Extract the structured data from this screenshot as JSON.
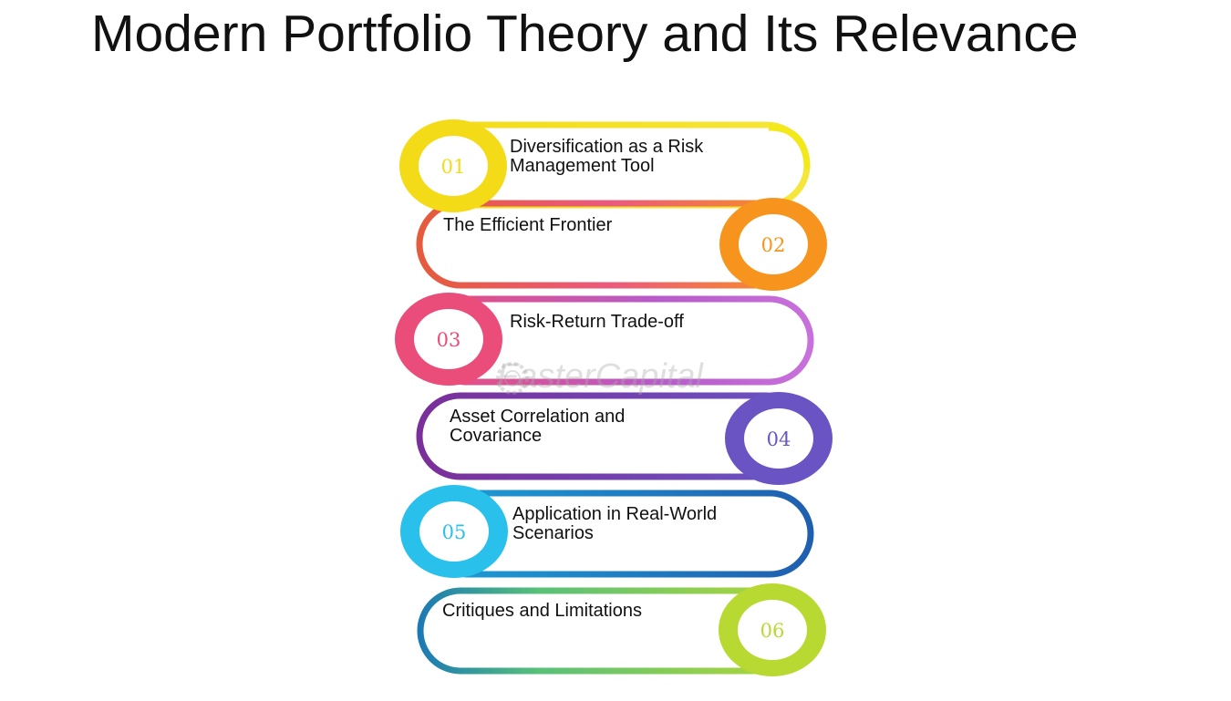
{
  "title": "Modern Portfolio Theory and Its Relevance",
  "watermark": "FasterCapital",
  "steps": [
    {
      "number": "01",
      "label": "Diversification as a Risk\nManagement Tool",
      "color": "#f3db17"
    },
    {
      "number": "02",
      "label": "The Efficient Frontier",
      "color": "#f7941d"
    },
    {
      "number": "03",
      "label": "Risk-Return Trade-off",
      "color": "#ea4d7a"
    },
    {
      "number": "04",
      "label": "Asset Correlation and\nCovariance",
      "color": "#6a54c4"
    },
    {
      "number": "05",
      "label": "Application in Real-World\nScenarios",
      "color": "#29c0ec"
    },
    {
      "number": "06",
      "label": "Critiques and Limitations",
      "color": "#b8d932"
    }
  ]
}
